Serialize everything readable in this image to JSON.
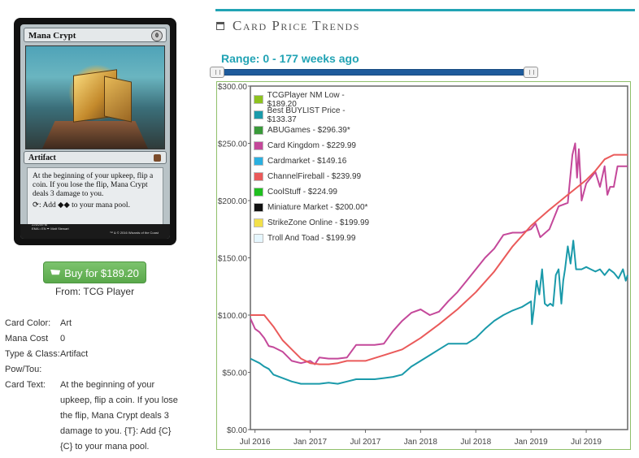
{
  "card": {
    "name": "Mana Crypt",
    "cost_symbol": "0",
    "type_line": "Artifact",
    "rules_text_1": "At the beginning of your upkeep, flip a coin. If you lose the flip, Mana Crypt deals 3 damage to you.",
    "rules_text_2": "⟳: Add ◆◆ to your mana pool.",
    "collector": "225/249 M",
    "set_line": "EMA • EN ✒ Matt Stewart",
    "copyright": "™ & © 2016 Wizards of the Coast"
  },
  "buy": {
    "label": "Buy for $189.20",
    "from": "From: TCG Player"
  },
  "info": [
    {
      "label": "Card Color:",
      "value": "Art"
    },
    {
      "label": "Mana Cost",
      "value": "0"
    },
    {
      "label": "Type & Class:",
      "value": "Artifact"
    },
    {
      "label": "Pow/Tou:",
      "value": ""
    },
    {
      "label": "Card Text:",
      "value": "At the beginning of your upkeep, flip a coin. If you lose the flip, Mana Crypt deals 3 damage to you. {T}: Add {C}{C} to your mana pool."
    }
  ],
  "section": {
    "title": "Card Price Trends",
    "icon": "calendar-icon"
  },
  "range": {
    "label": "Range: 0 - 177 weeks ago",
    "min_weeks": 0,
    "max_weeks": 177
  },
  "colors": {
    "accent": "#21a3b4",
    "button": "#5aa84b"
  },
  "chart_data": {
    "type": "line",
    "title": "",
    "xlabel": "",
    "ylabel": "",
    "ylim": [
      0,
      300
    ],
    "y_ticks": [
      "$0.00",
      "$50.00",
      "$100.00",
      "$150.00",
      "$200.00",
      "$250.00",
      "$300.00"
    ],
    "x_ticks": [
      "Jul 2016",
      "Jan 2017",
      "Jul 2017",
      "Jan 2018",
      "Jul 2018",
      "Jan 2019",
      "Jul 2019"
    ],
    "x_tick_months": [
      0,
      6,
      12,
      18,
      24,
      30,
      36
    ],
    "xlim_months": [
      -0.5,
      40.5
    ],
    "legend": [
      {
        "label": "TCGPlayer NM Low - $189.20",
        "color": "#8dc21f"
      },
      {
        "label": "Best BUYLIST Price - $133.37",
        "color": "#1a9aaa"
      },
      {
        "label": "ABUGames - $296.39*",
        "color": "#3a9a3a"
      },
      {
        "label": "Card Kingdom - $229.99",
        "color": "#c4489a"
      },
      {
        "label": "Cardmarket - $149.16",
        "color": "#2bb0e0"
      },
      {
        "label": "ChannelFireball - $239.99",
        "color": "#ea5a5a"
      },
      {
        "label": "CoolStuff - $224.99",
        "color": "#1fbf1f"
      },
      {
        "label": "Miniature Market - $200.00*",
        "color": "#111111"
      },
      {
        "label": "StrikeZone Online - $199.99",
        "color": "#f2e04a"
      },
      {
        "label": "Troll And Toad - $199.99",
        "color": "#e6f7ff"
      }
    ],
    "series": [
      {
        "name": "Card Kingdom - $229.99",
        "color": "#c4489a",
        "points": [
          [
            -0.5,
            97
          ],
          [
            0,
            88
          ],
          [
            0.5,
            85
          ],
          [
            1,
            80
          ],
          [
            1.5,
            73
          ],
          [
            2,
            72
          ],
          [
            3,
            68
          ],
          [
            4,
            60
          ],
          [
            5,
            58
          ],
          [
            6,
            60
          ],
          [
            6.5,
            57
          ],
          [
            7,
            63
          ],
          [
            8,
            62
          ],
          [
            9,
            62
          ],
          [
            10,
            63
          ],
          [
            11,
            74
          ],
          [
            12,
            74
          ],
          [
            13,
            74
          ],
          [
            14,
            75
          ],
          [
            15,
            86
          ],
          [
            16,
            95
          ],
          [
            17,
            102
          ],
          [
            18,
            105
          ],
          [
            19,
            100
          ],
          [
            20,
            103
          ],
          [
            21,
            112
          ],
          [
            22,
            120
          ],
          [
            23,
            130
          ],
          [
            24,
            140
          ],
          [
            25,
            150
          ],
          [
            26,
            158
          ],
          [
            27,
            170
          ],
          [
            28,
            172
          ],
          [
            29,
            172
          ],
          [
            30,
            175
          ],
          [
            30.5,
            180
          ],
          [
            31,
            168
          ],
          [
            32,
            175
          ],
          [
            33,
            195
          ],
          [
            34,
            198
          ],
          [
            34.5,
            240
          ],
          [
            34.8,
            250
          ],
          [
            35,
            220
          ],
          [
            35.2,
            245
          ],
          [
            35.5,
            200
          ],
          [
            36,
            215
          ],
          [
            37,
            225
          ],
          [
            37.5,
            212
          ],
          [
            38,
            230
          ],
          [
            38.3,
            205
          ],
          [
            38.6,
            212
          ],
          [
            39,
            212
          ],
          [
            39.4,
            230
          ],
          [
            40,
            230
          ],
          [
            40.5,
            230
          ]
        ]
      },
      {
        "name": "ChannelFireball - $239.99",
        "color": "#ea5a5a",
        "points": [
          [
            -0.5,
            100
          ],
          [
            1,
            100
          ],
          [
            2,
            90
          ],
          [
            3,
            78
          ],
          [
            4,
            70
          ],
          [
            5,
            62
          ],
          [
            6,
            58
          ],
          [
            7,
            57
          ],
          [
            8,
            57
          ],
          [
            9,
            58
          ],
          [
            10,
            60
          ],
          [
            12,
            60
          ],
          [
            14,
            65
          ],
          [
            16,
            70
          ],
          [
            18,
            80
          ],
          [
            20,
            92
          ],
          [
            22,
            105
          ],
          [
            24,
            120
          ],
          [
            26,
            138
          ],
          [
            28,
            160
          ],
          [
            30,
            178
          ],
          [
            32,
            192
          ],
          [
            34,
            205
          ],
          [
            36,
            218
          ],
          [
            37,
            226
          ],
          [
            38,
            236
          ],
          [
            39,
            240
          ],
          [
            40.5,
            240
          ]
        ]
      },
      {
        "name": "Best BUYLIST Price - $133.37",
        "color": "#1a9aaa",
        "points": [
          [
            -0.5,
            62
          ],
          [
            0.5,
            58
          ],
          [
            1,
            55
          ],
          [
            1.5,
            53
          ],
          [
            2,
            48
          ],
          [
            3,
            45
          ],
          [
            4,
            42
          ],
          [
            5,
            40
          ],
          [
            6,
            40
          ],
          [
            7,
            40
          ],
          [
            8,
            41
          ],
          [
            9,
            40
          ],
          [
            10,
            42
          ],
          [
            11,
            44
          ],
          [
            12,
            44
          ],
          [
            13,
            44
          ],
          [
            14,
            45
          ],
          [
            15,
            46
          ],
          [
            16,
            48
          ],
          [
            17,
            55
          ],
          [
            18,
            60
          ],
          [
            19,
            65
          ],
          [
            20,
            70
          ],
          [
            21,
            75
          ],
          [
            22,
            75
          ],
          [
            23,
            75
          ],
          [
            24,
            80
          ],
          [
            25,
            88
          ],
          [
            26,
            95
          ],
          [
            27,
            100
          ],
          [
            28,
            104
          ],
          [
            29,
            107
          ],
          [
            30,
            112
          ],
          [
            30.1,
            92
          ],
          [
            30.3,
            105
          ],
          [
            30.6,
            130
          ],
          [
            30.9,
            118
          ],
          [
            31.2,
            140
          ],
          [
            31.5,
            110
          ],
          [
            31.8,
            108
          ],
          [
            32.1,
            110
          ],
          [
            32.4,
            108
          ],
          [
            32.7,
            135
          ],
          [
            33,
            140
          ],
          [
            33.3,
            110
          ],
          [
            33.5,
            130
          ],
          [
            33.7,
            140
          ],
          [
            34,
            160
          ],
          [
            34.3,
            145
          ],
          [
            34.6,
            165
          ],
          [
            34.9,
            140
          ],
          [
            35.2,
            140
          ],
          [
            35.5,
            140
          ],
          [
            36,
            142
          ],
          [
            36.5,
            140
          ],
          [
            37,
            138
          ],
          [
            37.5,
            140
          ],
          [
            38,
            135
          ],
          [
            38.5,
            140
          ],
          [
            39,
            137
          ],
          [
            39.5,
            132
          ],
          [
            40,
            140
          ],
          [
            40.3,
            130
          ],
          [
            40.5,
            135
          ]
        ]
      }
    ]
  }
}
